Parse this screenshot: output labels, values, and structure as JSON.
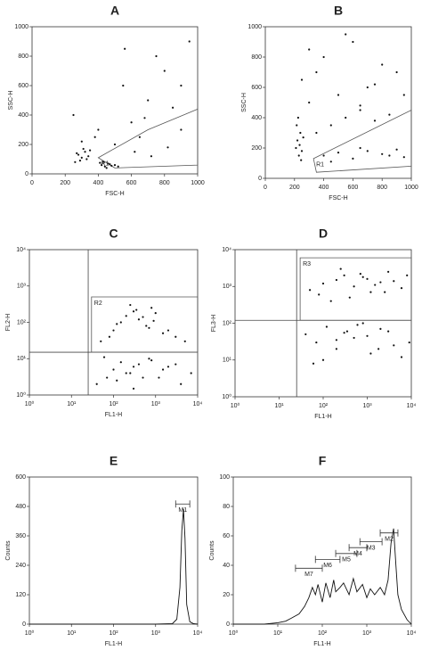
{
  "chart_data": [
    {
      "type": "scatter",
      "title": "A",
      "xlabel": "FSC-H",
      "ylabel": "SSC-H",
      "xlim": [
        0,
        1000
      ],
      "ylim": [
        0,
        1000
      ],
      "xticks": [
        0,
        200,
        400,
        600,
        800,
        1000
      ],
      "yticks": [
        0,
        200,
        400,
        600,
        800,
        1000
      ],
      "color": "#111111",
      "x": [
        280,
        300,
        320,
        290,
        310,
        330,
        270,
        340,
        260,
        350,
        420,
        440,
        460,
        480,
        430,
        450,
        470,
        500,
        410,
        520,
        600,
        700,
        800,
        900,
        550,
        650,
        750,
        850,
        950,
        400,
        250,
        380,
        500,
        620,
        720,
        820,
        900,
        300,
        560,
        680
      ],
      "y": [
        130,
        110,
        150,
        90,
        170,
        100,
        140,
        120,
        80,
        160,
        60,
        50,
        70,
        55,
        80,
        40,
        65,
        60,
        75,
        50,
        350,
        500,
        700,
        300,
        600,
        250,
        800,
        450,
        900,
        300,
        400,
        250,
        200,
        150,
        120,
        180,
        600,
        220,
        850,
        380
      ],
      "regions": [
        {
          "label": "R1",
          "x": [
            400,
            700,
            1000,
            1000,
            500
          ],
          "y": [
            110,
            300,
            440,
            60,
            40
          ]
        }
      ]
    },
    {
      "type": "scatter",
      "title": "B",
      "xlabel": "FSC-H",
      "ylabel": "SSC-H",
      "xlim": [
        0,
        1000
      ],
      "ylim": [
        0,
        1000
      ],
      "xticks": [
        0,
        200,
        400,
        600,
        800,
        1000
      ],
      "yticks": [
        0,
        200,
        400,
        600,
        800,
        1000
      ],
      "color": "#111111",
      "x": [
        210,
        220,
        230,
        240,
        250,
        215,
        235,
        245,
        260,
        225,
        400,
        500,
        600,
        700,
        800,
        900,
        950,
        450,
        650,
        850,
        350,
        450,
        550,
        650,
        750,
        850,
        300,
        500,
        700,
        900,
        250,
        400,
        600,
        800,
        950,
        300,
        550,
        750,
        350,
        650
      ],
      "y": [
        200,
        250,
        150,
        300,
        180,
        350,
        220,
        120,
        270,
        400,
        150,
        170,
        130,
        180,
        160,
        190,
        140,
        110,
        200,
        150,
        300,
        350,
        400,
        450,
        380,
        420,
        500,
        550,
        600,
        700,
        650,
        800,
        900,
        750,
        550,
        850,
        950,
        620,
        700,
        480
      ],
      "regions": [
        {
          "label": "R1",
          "x": [
            330,
            1000,
            1000,
            350
          ],
          "y": [
            130,
            450,
            80,
            40
          ]
        }
      ]
    },
    {
      "type": "scatter",
      "title": "C",
      "xlabel": "FL1-H",
      "ylabel": "FL2-H",
      "xlim": [
        1,
        10000
      ],
      "ylim": [
        1,
        10000
      ],
      "xlog": true,
      "ylog": true,
      "xticks": [
        {
          "value": 1,
          "label": "10⁰"
        },
        {
          "value": 10,
          "label": "10¹"
        },
        {
          "value": 100,
          "label": "10²"
        },
        {
          "value": 1000,
          "label": "10³"
        },
        {
          "value": 10000,
          "label": "10⁴"
        }
      ],
      "yticks": [
        {
          "value": 1,
          "label": "10⁰"
        },
        {
          "value": 10,
          "label": "10¹"
        },
        {
          "value": 100,
          "label": "10²"
        },
        {
          "value": 1000,
          "label": "10³"
        },
        {
          "value": 10000,
          "label": "10⁴"
        }
      ],
      "color": "#111111",
      "x": [
        50,
        100,
        150,
        200,
        300,
        400,
        600,
        800,
        1000,
        2000,
        80,
        120,
        250,
        350,
        500,
        700,
        900,
        1500,
        3000,
        5000,
        40,
        70,
        100,
        150,
        200,
        300,
        500,
        800,
        1500,
        3000,
        60,
        120,
        250,
        400,
        700,
        1200,
        2000,
        4000,
        7000,
        300
      ],
      "y": [
        30,
        60,
        100,
        150,
        200,
        120,
        80,
        250,
        180,
        60,
        40,
        90,
        300,
        220,
        140,
        70,
        110,
        50,
        40,
        30,
        2,
        3,
        5,
        8,
        4,
        6,
        3,
        9,
        5,
        7,
        11,
        2.5,
        4,
        7,
        10,
        3,
        6,
        2,
        4,
        1.5
      ],
      "quadrant": {
        "x": 25,
        "y": 15
      },
      "regions": [
        {
          "label": "R2",
          "x": [
            30,
            10000,
            10000,
            30
          ],
          "y": [
            15,
            15,
            500,
            500
          ]
        }
      ]
    },
    {
      "type": "scatter",
      "title": "D",
      "xlabel": "FL1-H",
      "ylabel": "FL3-H",
      "xlim": [
        1,
        10000
      ],
      "ylim": [
        1,
        10000
      ],
      "xlog": true,
      "ylog": true,
      "xticks": [
        {
          "value": 1,
          "label": "10⁰"
        },
        {
          "value": 10,
          "label": "10¹"
        },
        {
          "value": 100,
          "label": "10²"
        },
        {
          "value": 1000,
          "label": "10³"
        },
        {
          "value": 10000,
          "label": "10⁴"
        }
      ],
      "yticks": [
        {
          "value": 1,
          "label": "10⁰"
        },
        {
          "value": 10,
          "label": "10¹"
        },
        {
          "value": 100,
          "label": "10²"
        },
        {
          "value": 1000,
          "label": "10³"
        },
        {
          "value": 10000,
          "label": "10⁴"
        }
      ],
      "color": "#111111",
      "x": [
        50,
        100,
        200,
        300,
        500,
        800,
        1200,
        2000,
        3000,
        6000,
        80,
        150,
        250,
        400,
        700,
        1000,
        1500,
        2500,
        4000,
        8000,
        40,
        70,
        120,
        200,
        350,
        500,
        800,
        1200,
        2000,
        4000,
        60,
        100,
        200,
        300,
        600,
        1000,
        1800,
        3000,
        6000,
        9000
      ],
      "y": [
        800,
        1200,
        1500,
        2000,
        1000,
        1800,
        700,
        1300,
        2500,
        900,
        600,
        400,
        3000,
        500,
        2200,
        1600,
        1100,
        700,
        1400,
        2000,
        50,
        30,
        80,
        20,
        60,
        40,
        100,
        15,
        70,
        25,
        8,
        10,
        35,
        55,
        90,
        45,
        20,
        60,
        12,
        30
      ],
      "quadrant": {
        "x": 25,
        "y": 120
      },
      "regions": [
        {
          "label": "R3",
          "x": [
            30,
            10000,
            10000,
            30
          ],
          "y": [
            120,
            120,
            6000,
            6000
          ]
        }
      ]
    },
    {
      "type": "line",
      "title": "E",
      "xlabel": "FL1-H",
      "ylabel": "Counts",
      "xlim": [
        1,
        10000
      ],
      "ylim": [
        0,
        600
      ],
      "xlog": true,
      "xticks": [
        {
          "value": 1,
          "label": "10⁰"
        },
        {
          "value": 10,
          "label": "10¹"
        },
        {
          "value": 100,
          "label": "10²"
        },
        {
          "value": 1000,
          "label": "10³"
        },
        {
          "value": 10000,
          "label": "10⁴"
        }
      ],
      "yticks": [
        0,
        120,
        240,
        360,
        480,
        600
      ],
      "color": "#111111",
      "x": [
        1,
        10,
        100,
        1000,
        2500,
        3200,
        3800,
        4200,
        4600,
        5000,
        5500,
        6500,
        8000,
        10000
      ],
      "y": [
        0,
        0,
        0,
        0,
        2,
        20,
        150,
        380,
        470,
        350,
        80,
        10,
        2,
        0
      ],
      "markers": [
        {
          "label": "M1",
          "x": [
            3000,
            6500
          ],
          "y": 490
        }
      ]
    },
    {
      "type": "line",
      "title": "F",
      "xlabel": "FL1-H",
      "ylabel": "Counts",
      "xlim": [
        1,
        10000
      ],
      "ylim": [
        0,
        100
      ],
      "xlog": true,
      "xticks": [
        {
          "value": 1,
          "label": "10⁰"
        },
        {
          "value": 10,
          "label": "10¹"
        },
        {
          "value": 100,
          "label": "10²"
        },
        {
          "value": 1000,
          "label": "10³"
        },
        {
          "value": 10000,
          "label": "10⁴"
        }
      ],
      "yticks": [
        0,
        20,
        40,
        60,
        80,
        100
      ],
      "color": "#111111",
      "x": [
        1,
        5,
        10,
        15,
        20,
        30,
        40,
        50,
        60,
        70,
        80,
        100,
        120,
        150,
        180,
        200,
        250,
        300,
        400,
        500,
        600,
        800,
        1000,
        1200,
        1500,
        2000,
        2500,
        3000,
        3500,
        4000,
        4500,
        5000,
        6000,
        8000,
        10000
      ],
      "y": [
        0,
        0,
        1,
        2,
        4,
        7,
        12,
        18,
        25,
        20,
        27,
        15,
        28,
        18,
        30,
        22,
        25,
        28,
        20,
        31,
        22,
        27,
        18,
        24,
        20,
        25,
        20,
        30,
        55,
        65,
        40,
        20,
        10,
        3,
        0
      ],
      "markers": [
        {
          "label": "M2",
          "x": [
            2000,
            5000
          ],
          "y": 62
        },
        {
          "label": "M3",
          "x": [
            700,
            2200
          ],
          "y": 56
        },
        {
          "label": "M4",
          "x": [
            400,
            1000
          ],
          "y": 52
        },
        {
          "label": "M5",
          "x": [
            200,
            600
          ],
          "y": 48
        },
        {
          "label": "M6",
          "x": [
            70,
            250
          ],
          "y": 44
        },
        {
          "label": "M7",
          "x": [
            25,
            100
          ],
          "y": 38
        }
      ]
    }
  ]
}
